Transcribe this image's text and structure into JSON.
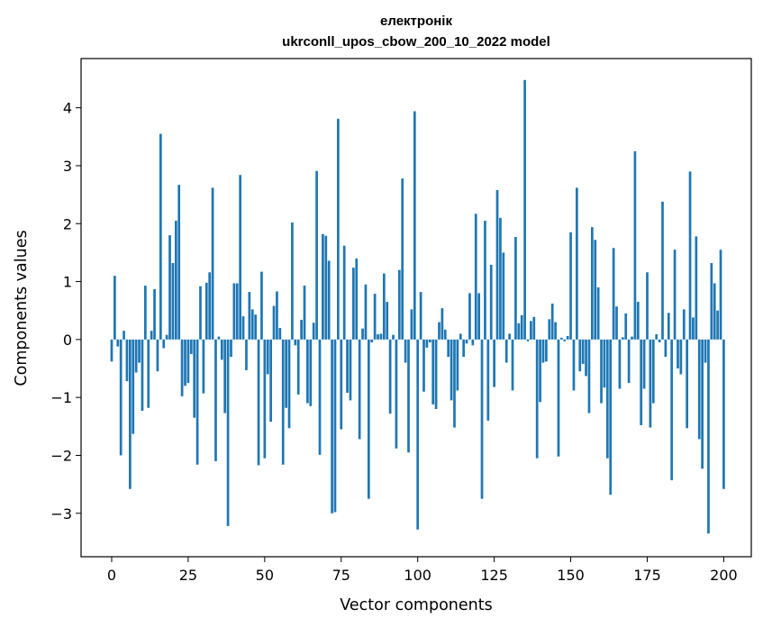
{
  "chart_data": {
    "type": "bar",
    "title_line1": "електронік",
    "title_line2": "ukrconll_upos_cbow_200_10_2022 model",
    "xlabel": "Vector components",
    "ylabel": "Components values",
    "xlim": [
      -10,
      209
    ],
    "ylim": [
      -3.75,
      4.85
    ],
    "xticks": [
      0,
      25,
      50,
      75,
      100,
      125,
      150,
      175,
      200
    ],
    "yticks": [
      -3,
      -2,
      -1,
      0,
      1,
      2,
      3,
      4
    ],
    "bar_color": "#1f77b4",
    "values": [
      -0.38,
      1.1,
      -0.12,
      -2.0,
      0.15,
      -0.72,
      -2.58,
      -1.63,
      -0.57,
      -0.4,
      -1.23,
      0.93,
      -1.18,
      0.15,
      0.87,
      -0.55,
      3.55,
      -0.15,
      0.08,
      1.8,
      1.32,
      2.05,
      2.67,
      -0.98,
      -0.8,
      -0.75,
      -0.25,
      -1.35,
      -2.16,
      0.92,
      -0.93,
      0.98,
      1.16,
      2.62,
      -2.1,
      0.05,
      -0.35,
      -1.27,
      -3.22,
      -0.3,
      0.97,
      0.97,
      2.84,
      0.4,
      -0.53,
      0.82,
      0.52,
      0.43,
      -2.17,
      1.17,
      -2.05,
      -0.6,
      -1.42,
      0.58,
      0.83,
      0.2,
      -2.16,
      -1.18,
      -1.53,
      2.02,
      -0.1,
      -0.95,
      0.34,
      0.93,
      -1.1,
      -1.15,
      0.29,
      2.91,
      -1.99,
      1.82,
      1.79,
      1.36,
      -3.0,
      -2.98,
      3.81,
      -1.55,
      1.62,
      -0.92,
      -1.05,
      1.24,
      1.4,
      -1.72,
      0.19,
      0.95,
      -2.75,
      -0.05,
      0.79,
      0.09,
      0.1,
      1.14,
      0.65,
      -1.28,
      0.08,
      -1.88,
      1.2,
      2.78,
      -0.4,
      -1.95,
      0.52,
      3.94,
      -3.28,
      0.82,
      -0.9,
      -0.14,
      -0.05,
      -1.12,
      -1.2,
      0.3,
      0.54,
      0.17,
      -0.3,
      -1.05,
      -1.52,
      -0.88,
      0.1,
      -0.3,
      -0.07,
      0.8,
      -0.1,
      2.17,
      0.8,
      -2.75,
      2.05,
      -1.4,
      1.29,
      -0.82,
      2.58,
      2.1,
      1.5,
      -0.4,
      0.1,
      -0.88,
      1.77,
      0.28,
      0.42,
      4.48,
      -0.03,
      0.32,
      0.39,
      -2.05,
      -1.08,
      -0.4,
      -0.38,
      0.35,
      0.62,
      0.3,
      -2.02,
      0.03,
      -0.03,
      0.06,
      1.85,
      -0.88,
      2.62,
      -0.55,
      -0.42,
      -0.63,
      -1.27,
      1.94,
      1.72,
      0.9,
      -1.1,
      -0.83,
      -2.05,
      -2.68,
      1.58,
      0.57,
      -0.85,
      0.04,
      0.45,
      -0.75,
      0.05,
      3.25,
      0.65,
      -1.48,
      -0.85,
      1.16,
      -1.52,
      -1.1,
      0.09,
      -0.05,
      2.38,
      -0.3,
      0.46,
      -2.43,
      1.55,
      -0.5,
      -0.6,
      0.52,
      -1.53,
      2.9,
      0.38,
      1.78,
      -1.72,
      -2.23,
      -0.4,
      -3.35,
      1.32,
      0.97,
      0.5,
      1.55,
      -2.58
    ]
  }
}
